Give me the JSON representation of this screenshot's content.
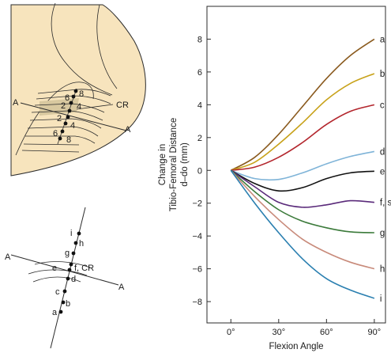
{
  "chart_data": {
    "type": "line",
    "xlabel": "Flexion Angle",
    "ylabel_lines": [
      "Change in",
      "Tibio-Femoral Distance",
      "d–do (mm)"
    ],
    "xlim": [
      -15,
      97
    ],
    "ylim": [
      -9.3,
      10
    ],
    "x_ticks": [
      0,
      30,
      60,
      90
    ],
    "x_tick_labels": [
      "0°",
      "30°",
      "60°",
      "90°"
    ],
    "y_ticks": [
      8,
      6,
      4,
      2,
      0,
      -2,
      -4,
      -6,
      -8
    ],
    "y_tick_labels": [
      "8",
      "6",
      "4",
      "2",
      "0",
      "−2",
      "−4",
      "−6",
      "−8"
    ],
    "grid": false,
    "x": [
      0,
      15,
      30,
      45,
      60,
      75,
      90
    ],
    "series": [
      {
        "name": "a",
        "color": "#8a5a1e",
        "values": [
          0,
          0.8,
          2.2,
          3.9,
          5.6,
          7.0,
          8.0
        ]
      },
      {
        "name": "b",
        "color": "#c8a21a",
        "values": [
          0,
          0.5,
          1.6,
          2.9,
          4.3,
          5.3,
          5.9
        ]
      },
      {
        "name": "c",
        "color": "#b3262d",
        "values": [
          0,
          0.2,
          0.8,
          1.7,
          2.8,
          3.6,
          4.0
        ]
      },
      {
        "name": "d",
        "color": "#7fb4d8",
        "values": [
          0,
          -0.5,
          -0.55,
          -0.15,
          0.4,
          0.85,
          1.15
        ]
      },
      {
        "name": "e",
        "color": "#111111",
        "values": [
          0,
          -0.8,
          -1.25,
          -1.05,
          -0.5,
          -0.15,
          -0.05
        ]
      },
      {
        "name": "f, s",
        "color": "#5a2a7a",
        "values": [
          0,
          -1.0,
          -1.95,
          -2.25,
          -2.1,
          -1.85,
          -1.95
        ]
      },
      {
        "name": "g",
        "color": "#3b7a3a",
        "values": [
          0,
          -1.3,
          -2.4,
          -3.1,
          -3.5,
          -3.75,
          -3.8
        ]
      },
      {
        "name": "h",
        "color": "#c88a7a",
        "values": [
          0,
          -1.6,
          -3.0,
          -4.2,
          -5.0,
          -5.6,
          -6.0
        ]
      },
      {
        "name": "i",
        "color": "#2a7fb0",
        "values": [
          0,
          -2.0,
          -3.8,
          -5.4,
          -6.6,
          -7.3,
          -7.8
        ]
      }
    ]
  },
  "diagram_top": {
    "label_cr": "CR",
    "label_a1": "A",
    "label_a2": "A",
    "upper_labels": [
      "8",
      "6",
      "4",
      "2"
    ],
    "lower_labels": [
      "2",
      "4",
      "6",
      "8"
    ]
  },
  "diagram_bottom": {
    "label_a1": "A",
    "label_a2": "A",
    "label_fcr": "f, CR",
    "point_labels": [
      "a",
      "b",
      "c",
      "d",
      "e",
      "g",
      "h",
      "i"
    ]
  }
}
